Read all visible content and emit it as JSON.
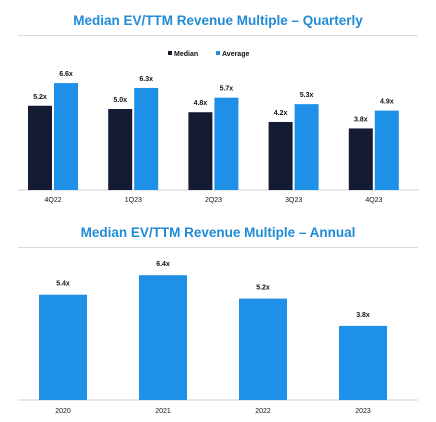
{
  "colors": {
    "title": "#1f8ad6",
    "median": "#141b33",
    "average": "#1e90e8",
    "annual": "#1e90e8"
  },
  "chart_data": [
    {
      "type": "bar",
      "title": "Median EV/TTM Revenue Multiple – Quarterly",
      "categories": [
        "4Q22",
        "1Q23",
        "2Q23",
        "3Q23",
        "4Q23"
      ],
      "series": [
        {
          "name": "Median",
          "values": [
            5.2,
            5.0,
            4.8,
            4.2,
            3.8
          ],
          "labels": [
            "5.2x",
            "5.0x",
            "4.8x",
            "4.2x",
            "3.8x"
          ]
        },
        {
          "name": "Average",
          "values": [
            6.6,
            6.3,
            5.7,
            5.3,
            4.9
          ],
          "labels": [
            "6.6x",
            "6.3x",
            "5.7x",
            "5.3x",
            "4.9x"
          ]
        }
      ],
      "legend": "top-center",
      "grid": false
    },
    {
      "type": "bar",
      "title": "Median EV/TTM Revenue Multiple – Annual",
      "categories": [
        "2020",
        "2021",
        "2022",
        "2023"
      ],
      "values": [
        5.4,
        6.4,
        5.2,
        3.8
      ],
      "labels": [
        "5.4x",
        "6.4x",
        "5.2x",
        "3.8x"
      ],
      "grid": false
    }
  ]
}
